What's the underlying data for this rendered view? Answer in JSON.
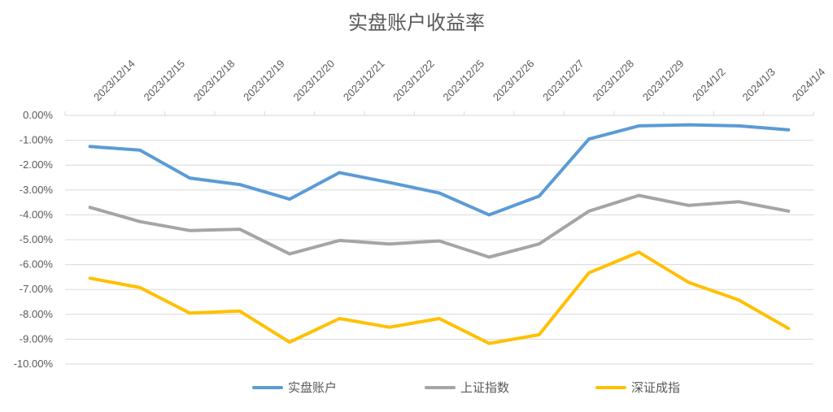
{
  "chart_data": {
    "type": "line",
    "title": "实盘账户收益率",
    "xlabel": "",
    "ylabel": "",
    "categories": [
      "2023/12/14",
      "2023/12/15",
      "2023/12/18",
      "2023/12/19",
      "2023/12/20",
      "2023/12/21",
      "2023/12/22",
      "2023/12/25",
      "2023/12/26",
      "2023/12/27",
      "2023/12/28",
      "2023/12/29",
      "2024/1/2",
      "2024/1/3",
      "2024/1/4"
    ],
    "ylim": [
      -10,
      0
    ],
    "ytick_labels": [
      "0.00%",
      "-1.00%",
      "-2.00%",
      "-3.00%",
      "-4.00%",
      "-5.00%",
      "-6.00%",
      "-7.00%",
      "-8.00%",
      "-9.00%",
      "-10.00%"
    ],
    "grid": true,
    "legend_position": "bottom",
    "series": [
      {
        "name": "实盘账户",
        "color": "#5B9BD5",
        "values": [
          -1.25,
          -1.4,
          -2.52,
          -2.78,
          -3.37,
          -2.3,
          -2.7,
          -3.12,
          -4.0,
          -3.25,
          -0.95,
          -0.42,
          -0.38,
          -0.42,
          -0.58
        ]
      },
      {
        "name": "上证指数",
        "color": "#A5A5A5",
        "values": [
          -3.7,
          -4.27,
          -4.63,
          -4.58,
          -5.57,
          -5.03,
          -5.17,
          -5.05,
          -5.7,
          -5.17,
          -3.85,
          -3.22,
          -3.62,
          -3.47,
          -3.85
        ]
      },
      {
        "name": "深证成指",
        "color": "#FFC000",
        "values": [
          -6.55,
          -6.92,
          -7.95,
          -7.87,
          -9.12,
          -8.17,
          -8.52,
          -8.17,
          -9.17,
          -8.82,
          -6.33,
          -5.5,
          -6.72,
          -7.42,
          -8.57
        ]
      }
    ]
  }
}
